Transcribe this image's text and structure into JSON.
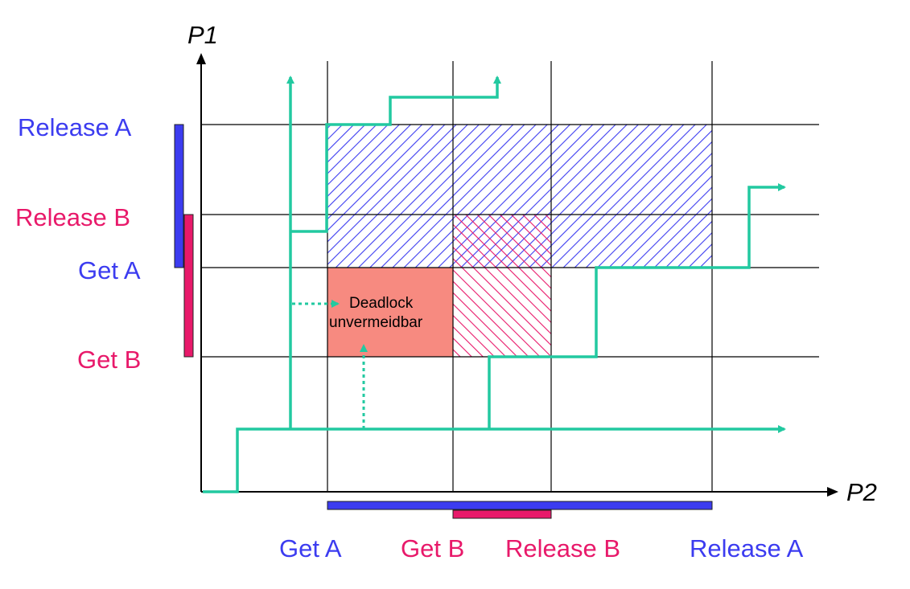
{
  "colors": {
    "resource_a": "#3c3cf0",
    "resource_b": "#e8196a",
    "path": "#22c9a0",
    "deadlock_fill": "#f78a80",
    "grid": "#000000"
  },
  "axes": {
    "x_label": "P2",
    "y_label": "P1"
  },
  "p1_steps": [
    {
      "label": "Release A",
      "resource": "A"
    },
    {
      "label": "Release B",
      "resource": "B"
    },
    {
      "label": "Get A",
      "resource": "A"
    },
    {
      "label": "Get B",
      "resource": "B"
    }
  ],
  "p2_steps": [
    {
      "label": "Get A",
      "resource": "A"
    },
    {
      "label": "Get B",
      "resource": "B"
    },
    {
      "label": "Release B",
      "resource": "B"
    },
    {
      "label": "Release A",
      "resource": "A"
    }
  ],
  "regions": {
    "deadlock_label_line1": "Deadlock",
    "deadlock_label_line2": "unvermeidbar"
  }
}
